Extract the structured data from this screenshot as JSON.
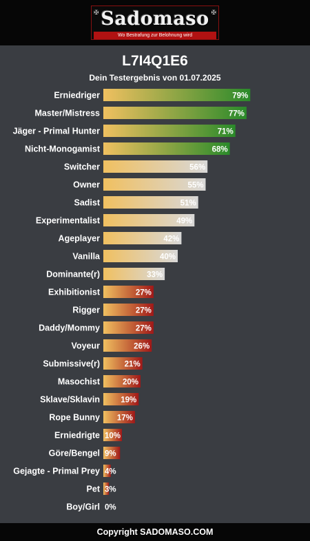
{
  "logo": {
    "title": "Sadomaso",
    "tagline": "Wo Bestrafung zur Belohnung wird"
  },
  "page": {
    "title": "L7I4Q1E6",
    "subtitle": "Dein Testergebnis von 01.07.2025"
  },
  "footer": {
    "text": "Copyright SADOMASO.COM"
  },
  "colors": {
    "background": "#3a3d42",
    "header": "#060606",
    "gradient_start": "#f0c060",
    "high": "#2a8a2a",
    "medium": "#d8d8d8",
    "low": "#a01818"
  },
  "chart_data": {
    "type": "bar",
    "orientation": "horizontal",
    "unit": "%",
    "xlim": [
      0,
      100
    ],
    "categories": [
      "Erniedriger",
      "Master/Mistress",
      "Jäger - Primal Hunter",
      "Nicht-Monogamist",
      "Switcher",
      "Owner",
      "Sadist",
      "Experimentalist",
      "Ageplayer",
      "Vanilla",
      "Dominante(r)",
      "Exhibitionist",
      "Rigger",
      "Daddy/Mommy",
      "Voyeur",
      "Submissive(r)",
      "Masochist",
      "Sklave/Sklavin",
      "Rope Bunny",
      "Erniedrigte",
      "Göre/Bengel",
      "Gejagte - Primal Prey",
      "Pet",
      "Boy/Girl"
    ],
    "values": [
      79,
      77,
      71,
      68,
      56,
      55,
      51,
      49,
      42,
      40,
      33,
      27,
      27,
      27,
      26,
      21,
      20,
      19,
      17,
      10,
      9,
      4,
      3,
      0
    ],
    "value_labels": [
      "79%",
      "77%",
      "71%",
      "68%",
      "56%",
      "55%",
      "51%",
      "49%",
      "42%",
      "40%",
      "33%",
      "27%",
      "27%",
      "27%",
      "26%",
      "21%",
      "20%",
      "19%",
      "17%",
      "10%",
      "9%",
      "4%",
      "3%",
      "0%"
    ],
    "grid": false
  }
}
